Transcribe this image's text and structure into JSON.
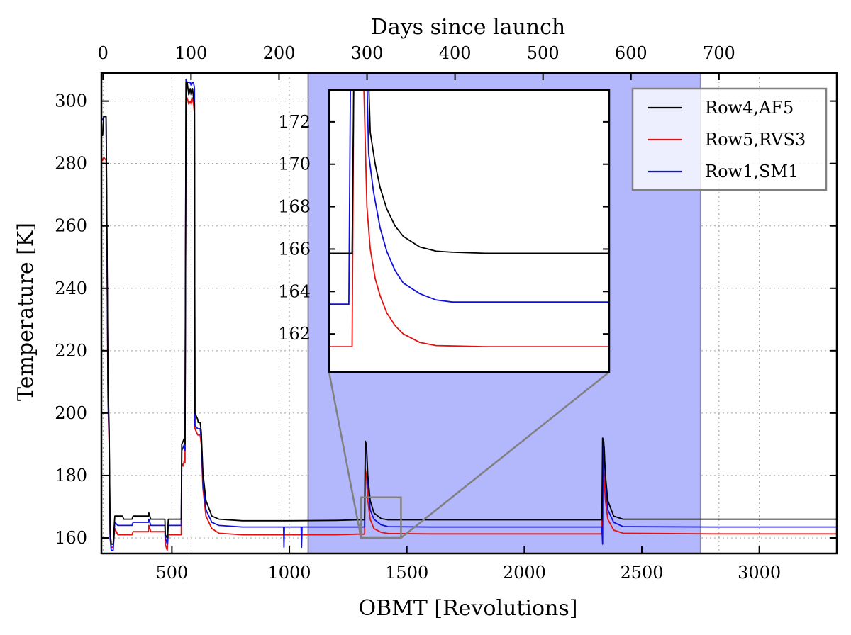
{
  "chart_data": {
    "type": "line",
    "xlabel": "OBMT [Revolutions]",
    "ylabel": "Temperature [K]",
    "x2label": "Days since launch",
    "xlim": [
      200,
      3330
    ],
    "ylim": [
      155,
      309
    ],
    "x_ticks": [
      500,
      1000,
      1500,
      2000,
      2500,
      3000
    ],
    "y_ticks": [
      160,
      180,
      200,
      220,
      240,
      260,
      280,
      300
    ],
    "x2_ticks": [
      0,
      100,
      200,
      300,
      400,
      500,
      600,
      700
    ],
    "x2_ticks_at_revolutions": [
      0,
      100,
      200,
      300,
      400,
      500,
      600,
      700
    ],
    "grid": true,
    "legend_position": "top-right",
    "shaded_region": {
      "x_start": 1080,
      "x_end": 2750,
      "color": "#b3b7fb"
    },
    "zoom_box": {
      "x": [
        1305,
        1475
      ],
      "y": [
        160,
        173
      ]
    },
    "inset": {
      "xlim": [
        1305,
        1475
      ],
      "ylim": [
        160.2,
        173.5
      ],
      "y_ticks": [
        162,
        164,
        166,
        168,
        170,
        172
      ]
    },
    "series": [
      {
        "name": "Row4,AF5",
        "color": "#000000",
        "points": [
          [
            200,
            289
          ],
          [
            205,
            289
          ],
          [
            210,
            295
          ],
          [
            220,
            295
          ],
          [
            222,
            275
          ],
          [
            228,
            210
          ],
          [
            233,
            195
          ],
          [
            237,
            162
          ],
          [
            242,
            158
          ],
          [
            250,
            158
          ],
          [
            257,
            167
          ],
          [
            270,
            167
          ],
          [
            290,
            167
          ],
          [
            295,
            166
          ],
          [
            320,
            166
          ],
          [
            330,
            166
          ],
          [
            335,
            167
          ],
          [
            400,
            167
          ],
          [
            402,
            168
          ],
          [
            410,
            166
          ],
          [
            470,
            166
          ],
          [
            472,
            161
          ],
          [
            480,
            160
          ],
          [
            485,
            166
          ],
          [
            540,
            166
          ],
          [
            542,
            190
          ],
          [
            548,
            191
          ],
          [
            553,
            192
          ],
          [
            556,
            190
          ],
          [
            560,
            306
          ],
          [
            565,
            306
          ],
          [
            572,
            302
          ],
          [
            578,
            304
          ],
          [
            582,
            302
          ],
          [
            588,
            304
          ],
          [
            592,
            301
          ],
          [
            596,
            299
          ],
          [
            598,
            200
          ],
          [
            610,
            198
          ],
          [
            612,
            197
          ],
          [
            620,
            197
          ],
          [
            625,
            194
          ],
          [
            632,
            181
          ],
          [
            645,
            172
          ],
          [
            670,
            167
          ],
          [
            700,
            166
          ],
          [
            800,
            165.5
          ],
          [
            1000,
            165.5
          ],
          [
            1200,
            165.6
          ],
          [
            1290,
            165.8
          ],
          [
            1320,
            165.8
          ],
          [
            1323,
            191
          ],
          [
            1328,
            190
          ],
          [
            1334,
            180
          ],
          [
            1344,
            172
          ],
          [
            1360,
            168
          ],
          [
            1390,
            166.2
          ],
          [
            1420,
            165.8
          ],
          [
            1600,
            165.8
          ],
          [
            2000,
            165.8
          ],
          [
            2330,
            165.8
          ],
          [
            2333,
            192
          ],
          [
            2338,
            191
          ],
          [
            2345,
            180
          ],
          [
            2355,
            172
          ],
          [
            2380,
            167
          ],
          [
            2420,
            166
          ],
          [
            2800,
            166
          ],
          [
            3330,
            166
          ]
        ]
      },
      {
        "name": "Row5,RVS3",
        "color": "#e21212",
        "points": [
          [
            200,
            282
          ],
          [
            205,
            281
          ],
          [
            210,
            282
          ],
          [
            220,
            281
          ],
          [
            222,
            270
          ],
          [
            228,
            203
          ],
          [
            233,
            190
          ],
          [
            237,
            160
          ],
          [
            242,
            157
          ],
          [
            250,
            157
          ],
          [
            257,
            163
          ],
          [
            270,
            161
          ],
          [
            330,
            161
          ],
          [
            335,
            162
          ],
          [
            400,
            162
          ],
          [
            402,
            164
          ],
          [
            410,
            162
          ],
          [
            470,
            162
          ],
          [
            472,
            158
          ],
          [
            480,
            156
          ],
          [
            485,
            161
          ],
          [
            540,
            161
          ],
          [
            542,
            184
          ],
          [
            548,
            183
          ],
          [
            553,
            185
          ],
          [
            556,
            184
          ],
          [
            560,
            300
          ],
          [
            565,
            301
          ],
          [
            572,
            299
          ],
          [
            578,
            300
          ],
          [
            582,
            299
          ],
          [
            588,
            301
          ],
          [
            592,
            299
          ],
          [
            596,
            296
          ],
          [
            598,
            195
          ],
          [
            610,
            193
          ],
          [
            620,
            193
          ],
          [
            625,
            190
          ],
          [
            632,
            176
          ],
          [
            645,
            167
          ],
          [
            670,
            163
          ],
          [
            700,
            161.5
          ],
          [
            800,
            161
          ],
          [
            1000,
            161
          ],
          [
            1200,
            161
          ],
          [
            1290,
            161.2
          ],
          [
            1320,
            161.2
          ],
          [
            1323,
            182
          ],
          [
            1328,
            180
          ],
          [
            1334,
            172
          ],
          [
            1344,
            166
          ],
          [
            1360,
            163
          ],
          [
            1390,
            161.8
          ],
          [
            1420,
            161.4
          ],
          [
            1600,
            161.3
          ],
          [
            2000,
            161.3
          ],
          [
            2330,
            161.3
          ],
          [
            2333,
            183
          ],
          [
            2338,
            181
          ],
          [
            2345,
            172
          ],
          [
            2355,
            166
          ],
          [
            2380,
            162.5
          ],
          [
            2420,
            161.5
          ],
          [
            2800,
            161.3
          ],
          [
            3330,
            161.3
          ]
        ]
      },
      {
        "name": "Row1,SM1",
        "color": "#1010dc",
        "points": [
          [
            200,
            294
          ],
          [
            205,
            294
          ],
          [
            210,
            295
          ],
          [
            220,
            295
          ],
          [
            222,
            272
          ],
          [
            228,
            205
          ],
          [
            233,
            193
          ],
          [
            237,
            160
          ],
          [
            242,
            156
          ],
          [
            250,
            156
          ],
          [
            257,
            165
          ],
          [
            270,
            164
          ],
          [
            330,
            164
          ],
          [
            335,
            165
          ],
          [
            400,
            165
          ],
          [
            402,
            166
          ],
          [
            410,
            164
          ],
          [
            470,
            164
          ],
          [
            472,
            160
          ],
          [
            480,
            158
          ],
          [
            485,
            164
          ],
          [
            540,
            164
          ],
          [
            542,
            188
          ],
          [
            548,
            189
          ],
          [
            553,
            190
          ],
          [
            556,
            188
          ],
          [
            560,
            307
          ],
          [
            565,
            306
          ],
          [
            572,
            306
          ],
          [
            578,
            306
          ],
          [
            582,
            305
          ],
          [
            588,
            306
          ],
          [
            592,
            306
          ],
          [
            596,
            304
          ],
          [
            598,
            196
          ],
          [
            610,
            195
          ],
          [
            620,
            195
          ],
          [
            625,
            192
          ],
          [
            632,
            178
          ],
          [
            645,
            169
          ],
          [
            670,
            165
          ],
          [
            700,
            164
          ],
          [
            800,
            163.5
          ],
          [
            975,
            163.5
          ],
          [
            977,
            157
          ],
          [
            979,
            163.5
          ],
          [
            1050,
            163.5
          ],
          [
            1052,
            157
          ],
          [
            1054,
            163.5
          ],
          [
            1200,
            163.5
          ],
          [
            1290,
            163.5
          ],
          [
            1320,
            163.5
          ],
          [
            1323,
            190
          ],
          [
            1328,
            189
          ],
          [
            1334,
            178
          ],
          [
            1344,
            169
          ],
          [
            1360,
            166
          ],
          [
            1390,
            164.2
          ],
          [
            1420,
            163.6
          ],
          [
            1600,
            163.5
          ],
          [
            2000,
            163.5
          ],
          [
            2330,
            163.5
          ],
          [
            2333,
            158
          ],
          [
            2335,
            191
          ],
          [
            2340,
            189
          ],
          [
            2345,
            178
          ],
          [
            2355,
            169
          ],
          [
            2380,
            165
          ],
          [
            2420,
            163.6
          ],
          [
            2800,
            163.5
          ],
          [
            3330,
            163.5
          ]
        ]
      }
    ],
    "inset_series": [
      {
        "name": "Row4,AF5",
        "color": "#000000",
        "points": [
          [
            1305,
            165.8
          ],
          [
            1319,
            165.8
          ],
          [
            1320,
            174
          ],
          [
            1329,
            174
          ],
          [
            1330,
            171.5
          ],
          [
            1333,
            170
          ],
          [
            1336,
            168.9
          ],
          [
            1340,
            167.9
          ],
          [
            1345,
            167.1
          ],
          [
            1350,
            166.6
          ],
          [
            1360,
            166.1
          ],
          [
            1370,
            165.9
          ],
          [
            1380,
            165.85
          ],
          [
            1400,
            165.8
          ],
          [
            1440,
            165.8
          ],
          [
            1475,
            165.8
          ]
        ]
      },
      {
        "name": "Row5,RVS3",
        "color": "#e21212",
        "points": [
          [
            1305,
            161.4
          ],
          [
            1319,
            161.4
          ],
          [
            1320,
            174
          ],
          [
            1326,
            174
          ],
          [
            1328,
            168
          ],
          [
            1330,
            166
          ],
          [
            1333,
            164.6
          ],
          [
            1336,
            163.8
          ],
          [
            1340,
            163
          ],
          [
            1345,
            162.4
          ],
          [
            1350,
            162
          ],
          [
            1360,
            161.6
          ],
          [
            1370,
            161.45
          ],
          [
            1400,
            161.4
          ],
          [
            1440,
            161.4
          ],
          [
            1475,
            161.4
          ]
        ]
      },
      {
        "name": "Row1,SM1",
        "color": "#1010dc",
        "points": [
          [
            1305,
            163.4
          ],
          [
            1317,
            163.4
          ],
          [
            1318,
            174
          ],
          [
            1328,
            174
          ],
          [
            1329,
            170.5
          ],
          [
            1332,
            168.7
          ],
          [
            1336,
            167
          ],
          [
            1340,
            165.9
          ],
          [
            1345,
            165
          ],
          [
            1350,
            164.4
          ],
          [
            1360,
            163.9
          ],
          [
            1370,
            163.6
          ],
          [
            1380,
            163.5
          ],
          [
            1400,
            163.5
          ],
          [
            1440,
            163.5
          ],
          [
            1475,
            163.5
          ]
        ]
      }
    ]
  }
}
